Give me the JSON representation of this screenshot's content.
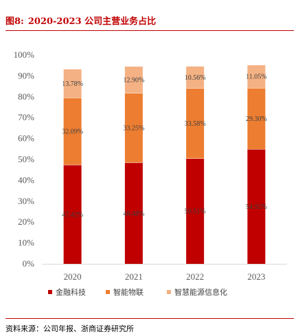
{
  "header": {
    "figure_label": "图8:",
    "title": "2020-2023 公司主营业务占比"
  },
  "footer": {
    "source": "资料来源：公司年报、浙商证券研究所"
  },
  "chart_data": {
    "type": "bar",
    "stacked": true,
    "percent": true,
    "categories": [
      "2020",
      "2021",
      "2022",
      "2023"
    ],
    "series": [
      {
        "name": "金融科技",
        "color": "#c00000",
        "values": [
          47.42,
          48.48,
          50.51,
          54.92
        ],
        "labels": [
          "47.42%",
          "48.48%",
          "50.51%",
          "54.92%"
        ]
      },
      {
        "name": "智能物联",
        "color": "#ed7d31",
        "values": [
          32.09,
          33.25,
          33.58,
          29.3
        ],
        "labels": [
          "32.09%",
          "33.25%",
          "33.58%",
          "29.30%"
        ]
      },
      {
        "name": "智慧能源信息化",
        "color": "#f4b183",
        "values": [
          13.78,
          12.9,
          10.56,
          11.05
        ],
        "labels": [
          "13.78%",
          "12.90%",
          "10.56%",
          "11.05%"
        ]
      }
    ],
    "ylim": [
      0,
      100
    ],
    "yticks": [
      "0%",
      "10%",
      "20%",
      "30%",
      "40%",
      "50%",
      "60%",
      "70%",
      "80%",
      "90%",
      "100%"
    ],
    "grid": false,
    "legend_position": "bottom"
  }
}
